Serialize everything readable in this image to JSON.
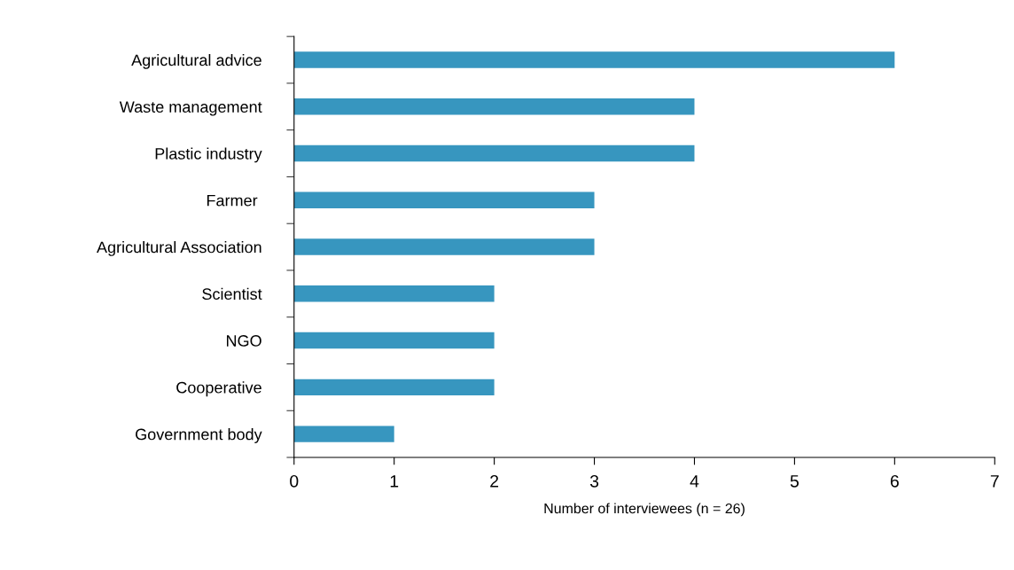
{
  "chart_data": {
    "type": "bar",
    "orientation": "horizontal",
    "xlabel": "Number of interviewees (n = 26)",
    "categories": [
      "Agricultural advice",
      "Waste management",
      "Plastic industry",
      "Farmer ",
      "Agricultural Association",
      "Scientist",
      "NGO",
      "Cooperative",
      "Government body"
    ],
    "values": [
      6,
      4,
      4,
      3,
      3,
      2,
      2,
      2,
      1
    ],
    "color": "#3796bf",
    "xlim": [
      0,
      7
    ],
    "xticks": [
      0,
      1,
      2,
      3,
      4,
      5,
      6,
      7
    ],
    "grid": false,
    "legend": false
  }
}
